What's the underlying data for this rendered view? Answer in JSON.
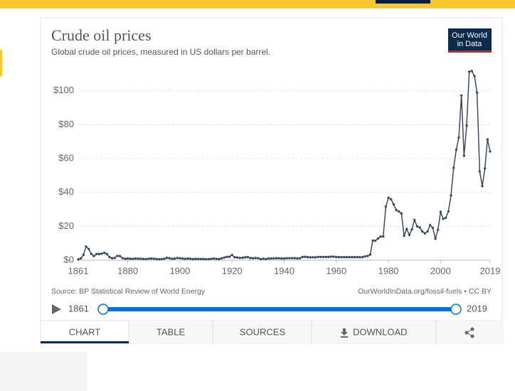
{
  "chart_data": {
    "type": "line",
    "title": "Crude oil prices",
    "subtitle": "Global crude oil prices, measured in US dollars per barrel.",
    "source": "Source: BP Statistical Review of World Energy",
    "license": "OurWorldInData.org/fossil-fuels • CC BY",
    "x": [
      1861,
      1862,
      1863,
      1864,
      1865,
      1866,
      1867,
      1868,
      1869,
      1870,
      1871,
      1872,
      1873,
      1874,
      1875,
      1876,
      1877,
      1878,
      1879,
      1880,
      1881,
      1882,
      1883,
      1884,
      1885,
      1886,
      1887,
      1888,
      1889,
      1890,
      1891,
      1892,
      1893,
      1894,
      1895,
      1896,
      1897,
      1898,
      1899,
      1900,
      1901,
      1902,
      1903,
      1904,
      1905,
      1906,
      1907,
      1908,
      1909,
      1910,
      1911,
      1912,
      1913,
      1914,
      1915,
      1916,
      1917,
      1918,
      1919,
      1920,
      1921,
      1922,
      1923,
      1924,
      1925,
      1926,
      1927,
      1928,
      1929,
      1930,
      1931,
      1932,
      1933,
      1934,
      1935,
      1936,
      1937,
      1938,
      1939,
      1940,
      1941,
      1942,
      1943,
      1944,
      1945,
      1946,
      1947,
      1948,
      1949,
      1950,
      1951,
      1952,
      1953,
      1954,
      1955,
      1956,
      1957,
      1958,
      1959,
      1960,
      1961,
      1962,
      1963,
      1964,
      1965,
      1966,
      1967,
      1968,
      1969,
      1970,
      1971,
      1972,
      1973,
      1974,
      1975,
      1976,
      1977,
      1978,
      1979,
      1980,
      1981,
      1982,
      1983,
      1984,
      1985,
      1986,
      1987,
      1988,
      1989,
      1990,
      1991,
      1992,
      1993,
      1994,
      1995,
      1996,
      1997,
      1998,
      1999,
      2000,
      2001,
      2002,
      2003,
      2004,
      2005,
      2006,
      2007,
      2008,
      2009,
      2010,
      2011,
      2012,
      2013,
      2014,
      2015,
      2016,
      2017,
      2018,
      2019
    ],
    "series": [
      {
        "color": "#3c4a60",
        "values": [
          0.49,
          1.05,
          3.15,
          8.06,
          6.59,
          3.74,
          2.41,
          3.63,
          3.64,
          3.86,
          4.34,
          3.64,
          1.83,
          1.17,
          1.35,
          2.56,
          2.42,
          1.19,
          0.86,
          0.95,
          0.86,
          0.78,
          1.0,
          0.84,
          0.88,
          0.71,
          0.67,
          0.88,
          0.94,
          0.87,
          0.67,
          0.56,
          0.64,
          0.84,
          1.36,
          1.18,
          0.79,
          0.91,
          1.29,
          1.19,
          0.96,
          0.8,
          0.94,
          0.86,
          0.62,
          0.73,
          0.72,
          0.72,
          0.7,
          0.61,
          0.61,
          0.74,
          0.95,
          0.81,
          0.64,
          1.1,
          1.56,
          1.98,
          2.01,
          3.07,
          1.73,
          1.61,
          1.34,
          1.43,
          1.68,
          1.88,
          1.3,
          1.17,
          1.27,
          1.19,
          0.65,
          0.87,
          0.67,
          1.0,
          0.97,
          1.09,
          1.18,
          1.13,
          1.02,
          1.02,
          1.14,
          1.19,
          1.2,
          1.21,
          1.05,
          1.12,
          1.9,
          1.99,
          1.78,
          1.71,
          1.71,
          1.71,
          1.93,
          1.93,
          1.93,
          1.93,
          1.9,
          2.08,
          2.08,
          1.9,
          1.8,
          1.8,
          1.8,
          1.8,
          1.8,
          1.8,
          1.8,
          1.8,
          1.8,
          1.8,
          2.24,
          2.48,
          3.29,
          11.58,
          11.53,
          12.8,
          13.92,
          14.02,
          31.61,
          36.83,
          35.93,
          32.97,
          29.55,
          28.78,
          27.56,
          14.43,
          18.44,
          14.92,
          18.23,
          23.73,
          20.0,
          19.32,
          16.97,
          15.82,
          17.02,
          20.67,
          19.09,
          12.72,
          17.97,
          28.5,
          24.44,
          25.02,
          28.83,
          38.27,
          54.52,
          65.14,
          72.39,
          97.26,
          61.67,
          79.5,
          111.26,
          111.67,
          108.66,
          98.95,
          52.39,
          43.73,
          54.19,
          71.31,
          64.21
        ]
      }
    ],
    "xlim": [
      1861,
      2019
    ],
    "xticks": [
      1861,
      1880,
      1900,
      1920,
      1940,
      1960,
      1980,
      2000,
      2019
    ],
    "ylim": [
      0,
      115
    ],
    "yticks": [
      {
        "value": 0,
        "label": "$0"
      },
      {
        "value": 20,
        "label": "$20"
      },
      {
        "value": 40,
        "label": "$40"
      },
      {
        "value": 60,
        "label": "$60"
      },
      {
        "value": 80,
        "label": "$80"
      },
      {
        "value": 100,
        "label": "$100"
      }
    ],
    "grid": true
  },
  "logo": [
    "Our World",
    "in Data"
  ],
  "timeline": {
    "start": "1861",
    "end": "2019"
  },
  "tabs": [
    "CHART",
    "TABLE",
    "SOURCES",
    "DOWNLOAD"
  ]
}
